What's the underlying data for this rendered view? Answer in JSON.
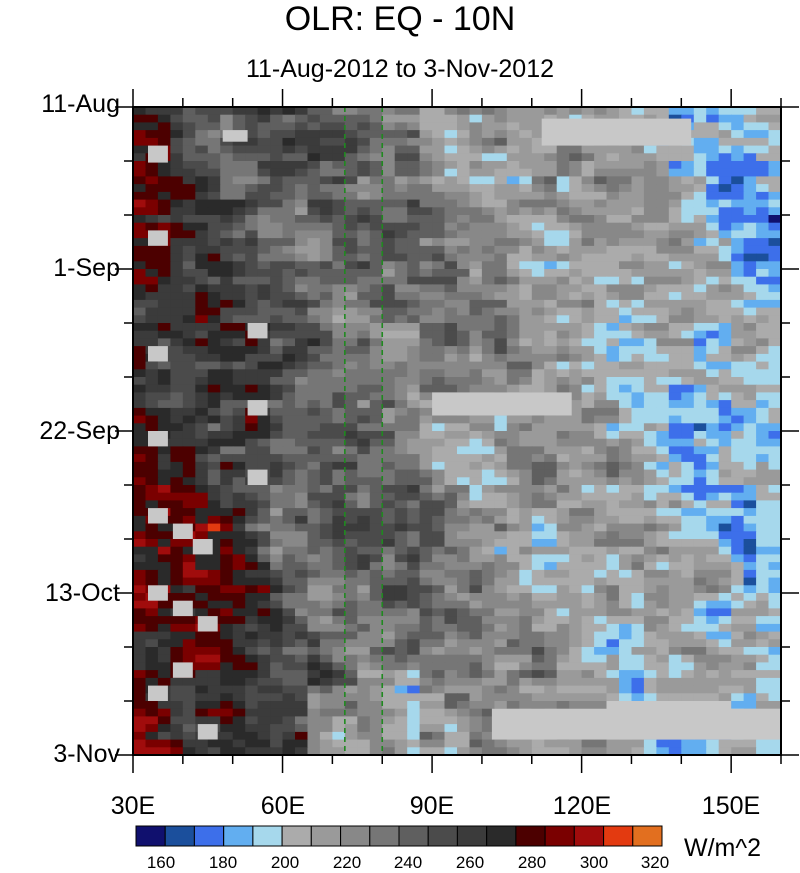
{
  "chart_data": {
    "type": "heatmap",
    "title": "OLR: EQ - 10N",
    "subtitle": "11-Aug-2012 to 3-Nov-2012",
    "y_axis": {
      "ticks": [
        "11-Aug",
        "1-Sep",
        "22-Sep",
        "13-Oct",
        "3-Nov"
      ],
      "range": [
        "11-Aug-2012",
        "3-Nov-2012"
      ],
      "direction": "time increases downward"
    },
    "x_axis": {
      "ticks": [
        "30E",
        "60E",
        "90E",
        "120E",
        "150E"
      ],
      "range": [
        30,
        160
      ]
    },
    "colorbar": {
      "units": "W/m^2",
      "labels": [
        "160",
        "180",
        "200",
        "220",
        "240",
        "260",
        "280",
        "300",
        "320"
      ],
      "levels": [
        150,
        160,
        170,
        180,
        190,
        200,
        210,
        220,
        230,
        240,
        250,
        260,
        270,
        280,
        290,
        300,
        310,
        320,
        330
      ],
      "colors": [
        "#10106e",
        "#1b4f9c",
        "#3d6fea",
        "#62aef0",
        "#a6d8ec",
        "#ababab",
        "#9a9a9a",
        "#888888",
        "#767676",
        "#5f5f5f",
        "#4b4b4b",
        "#3b3b3b",
        "#2a2a2a",
        "#4c0000",
        "#7a0000",
        "#a00c0c",
        "#e33a10",
        "#e26f1f"
      ]
    },
    "reference_lines_longitude": [
      72.5,
      80
    ]
  }
}
